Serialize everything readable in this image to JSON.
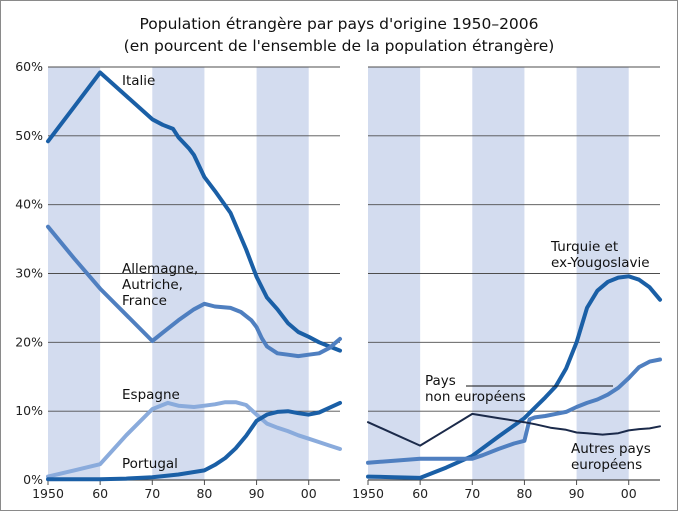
{
  "chart_data": {
    "type": "line",
    "title": "Population étrangère par pays d'origine 1950–2006",
    "subtitle": "(en pourcent de l'ensemble de la population étrangère)",
    "xlim": [
      1950,
      2006
    ],
    "ylim": [
      0,
      60
    ],
    "x_tick_labels": [
      "1950",
      "60",
      "70",
      "80",
      "90",
      "00"
    ],
    "y_tick_labels": [
      "0%",
      "10%",
      "20%",
      "30%",
      "40%",
      "50%",
      "60%"
    ],
    "shaded_bands": [
      [
        1950,
        1960
      ],
      [
        1970,
        1980
      ],
      [
        1990,
        2000
      ]
    ],
    "colors": {
      "band": "#d3dcef",
      "grid": "#4d4d4d",
      "dark_blue": "#1a5fa6",
      "mid_blue": "#4f7fc0",
      "light_blue": "#8aabdc",
      "dark_line": "#1b2a4a"
    },
    "panels": [
      {
        "name": "left",
        "series": [
          {
            "name": "Italie",
            "label_lines": [
              "Italie"
            ],
            "color": "#1a5fa6",
            "x": [
              1950,
              1955,
              1960,
              1965,
              1970,
              1972,
              1974,
              1975,
              1977,
              1978,
              1980,
              1982,
              1985,
              1988,
              1990,
              1992,
              1994,
              1996,
              1998,
              2000,
              2002,
              2004,
              2006
            ],
            "y": [
              49.2,
              54.2,
              59.2,
              55.8,
              52.4,
              51.6,
              51.0,
              49.8,
              48.2,
              47.2,
              44.0,
              42.0,
              38.8,
              33.5,
              29.5,
              26.5,
              24.8,
              22.8,
              21.5,
              20.8,
              20.0,
              19.4,
              18.8
            ]
          },
          {
            "name": "Allemagne, Autriche, France",
            "label_lines": [
              "Allemagne,",
              "Autriche,",
              "France"
            ],
            "color": "#4f7fc0",
            "x": [
              1950,
              1955,
              1960,
              1965,
              1970,
              1972,
              1975,
              1978,
              1980,
              1982,
              1985,
              1987,
              1989,
              1990,
              1991,
              1992,
              1994,
              1996,
              1998,
              2000,
              2002,
              2004,
              2006
            ],
            "y": [
              36.8,
              32.2,
              27.8,
              24.0,
              20.2,
              21.4,
              23.2,
              24.8,
              25.6,
              25.2,
              25.0,
              24.4,
              23.2,
              22.2,
              20.6,
              19.4,
              18.4,
              18.2,
              18.0,
              18.2,
              18.4,
              19.2,
              20.5
            ]
          },
          {
            "name": "Espagne",
            "label_lines": [
              "Espagne"
            ],
            "color": "#8aabdc",
            "x": [
              1950,
              1955,
              1960,
              1965,
              1970,
              1973,
              1975,
              1978,
              1980,
              1982,
              1984,
              1986,
              1988,
              1990,
              1992,
              1994,
              1996,
              1998,
              2000,
              2002,
              2004,
              2006
            ],
            "y": [
              0.5,
              1.4,
              2.3,
              6.5,
              10.3,
              11.2,
              10.8,
              10.6,
              10.8,
              11.0,
              11.3,
              11.3,
              10.9,
              9.5,
              8.2,
              7.6,
              7.1,
              6.5,
              6.0,
              5.5,
              5.0,
              4.5
            ]
          },
          {
            "name": "Portugal",
            "label_lines": [
              "Portugal"
            ],
            "color": "#1a5fa6",
            "x": [
              1950,
              1955,
              1960,
              1965,
              1970,
              1975,
              1980,
              1982,
              1984,
              1986,
              1988,
              1990,
              1992,
              1994,
              1996,
              1998,
              2000,
              2002,
              2004,
              2006
            ],
            "y": [
              0.1,
              0.1,
              0.1,
              0.2,
              0.4,
              0.8,
              1.4,
              2.2,
              3.2,
              4.6,
              6.4,
              8.6,
              9.5,
              9.9,
              10.0,
              9.7,
              9.5,
              9.8,
              10.5,
              11.2
            ]
          }
        ]
      },
      {
        "name": "right",
        "series": [
          {
            "name": "Turquie et ex-Yougoslavie",
            "label_lines": [
              "Turquie et",
              "ex-Yougoslavie"
            ],
            "color": "#1a5fa6",
            "x": [
              1950,
              1955,
              1960,
              1965,
              1970,
              1975,
              1980,
              1982,
              1984,
              1986,
              1988,
              1990,
              1992,
              1994,
              1996,
              1998,
              2000,
              2002,
              2004,
              2006
            ],
            "y": [
              0.5,
              0.4,
              0.3,
              1.8,
              3.5,
              6.3,
              9.0,
              10.5,
              12.0,
              13.6,
              16.2,
              20.0,
              25.0,
              27.5,
              28.8,
              29.4,
              29.6,
              29.1,
              28.0,
              26.2
            ]
          },
          {
            "name": "Pays non européens",
            "label_lines": [
              "Pays",
              "non européens"
            ],
            "color": "#4f7fc0",
            "x": [
              1950,
              1955,
              1960,
              1965,
              1970,
              1972,
              1975,
              1978,
              1980,
              1981,
              1982,
              1984,
              1986,
              1988,
              1990,
              1992,
              1994,
              1996,
              1998,
              2000,
              2002,
              2004,
              2006
            ],
            "y": [
              2.5,
              2.8,
              3.1,
              3.1,
              3.1,
              3.6,
              4.5,
              5.3,
              5.7,
              8.8,
              9.1,
              9.3,
              9.6,
              9.9,
              10.6,
              11.2,
              11.7,
              12.4,
              13.4,
              14.8,
              16.4,
              17.2,
              17.5
            ]
          },
          {
            "name": "Autres pays européens",
            "label_lines": [
              "Autres pays",
              "européens"
            ],
            "color": "#1b2a4a",
            "x": [
              1950,
              1955,
              1960,
              1965,
              1970,
              1975,
              1980,
              1982,
              1985,
              1988,
              1990,
              1992,
              1995,
              1998,
              2000,
              2002,
              2004,
              2006
            ],
            "y": [
              8.4,
              6.7,
              5.0,
              7.3,
              9.6,
              9.0,
              8.4,
              8.1,
              7.6,
              7.3,
              6.9,
              6.8,
              6.6,
              6.8,
              7.2,
              7.4,
              7.5,
              7.8
            ]
          }
        ]
      }
    ]
  }
}
